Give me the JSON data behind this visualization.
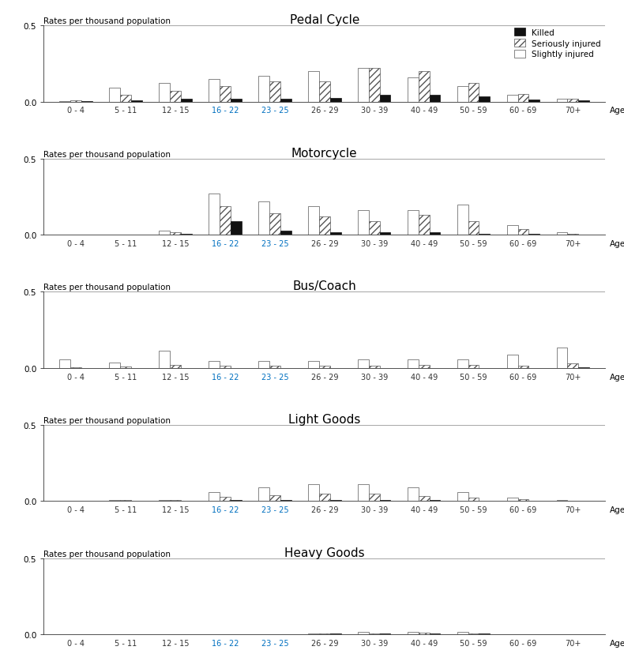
{
  "age_groups": [
    "0 - 4",
    "5 - 11",
    "12 - 15",
    "16 - 22",
    "23 - 25",
    "26 - 29",
    "30 - 39",
    "40 - 49",
    "50 - 59",
    "60 - 69",
    "70+"
  ],
  "age_colors": [
    "#333333",
    "#333333",
    "#333333",
    "#0070c0",
    "#0070c0",
    "#333333",
    "#333333",
    "#333333",
    "#333333",
    "#333333",
    "#333333"
  ],
  "charts": [
    {
      "title": "Pedal Cycle",
      "killed": [
        0.003,
        0.008,
        0.018,
        0.018,
        0.02,
        0.025,
        0.045,
        0.045,
        0.035,
        0.012,
        0.008
      ],
      "seriously_injured": [
        0.008,
        0.045,
        0.07,
        0.1,
        0.13,
        0.13,
        0.22,
        0.2,
        0.12,
        0.05,
        0.018
      ],
      "slightly_injured": [
        0.003,
        0.09,
        0.12,
        0.15,
        0.17,
        0.2,
        0.22,
        0.16,
        0.1,
        0.045,
        0.018
      ]
    },
    {
      "title": "Motorcycle",
      "killed": [
        0.0,
        0.0,
        0.004,
        0.09,
        0.025,
        0.018,
        0.018,
        0.014,
        0.008,
        0.004,
        0.003
      ],
      "seriously_injured": [
        0.0,
        0.0,
        0.018,
        0.19,
        0.14,
        0.12,
        0.09,
        0.13,
        0.09,
        0.035,
        0.008
      ],
      "slightly_injured": [
        0.0,
        0.0,
        0.025,
        0.27,
        0.22,
        0.19,
        0.16,
        0.16,
        0.2,
        0.065,
        0.018
      ]
    },
    {
      "title": "Bus/Coach",
      "killed": [
        0.0,
        0.0,
        0.0,
        0.0,
        0.0,
        0.0,
        0.0,
        0.0,
        0.0,
        0.0,
        0.004
      ],
      "seriously_injured": [
        0.004,
        0.012,
        0.022,
        0.015,
        0.015,
        0.015,
        0.015,
        0.022,
        0.018,
        0.015,
        0.03
      ],
      "slightly_injured": [
        0.055,
        0.035,
        0.115,
        0.045,
        0.045,
        0.045,
        0.055,
        0.055,
        0.055,
        0.085,
        0.135
      ]
    },
    {
      "title": "Light Goods",
      "killed": [
        0.0,
        0.003,
        0.003,
        0.008,
        0.008,
        0.01,
        0.01,
        0.008,
        0.004,
        0.003,
        0.0
      ],
      "seriously_injured": [
        0.003,
        0.008,
        0.008,
        0.03,
        0.04,
        0.05,
        0.05,
        0.035,
        0.025,
        0.012,
        0.004
      ],
      "slightly_injured": [
        0.003,
        0.008,
        0.008,
        0.06,
        0.09,
        0.11,
        0.11,
        0.09,
        0.06,
        0.025,
        0.008
      ]
    },
    {
      "title": "Heavy Goods",
      "killed": [
        0.0,
        0.0,
        0.0,
        0.0,
        0.003,
        0.004,
        0.004,
        0.004,
        0.004,
        0.0,
        0.0
      ],
      "seriously_injured": [
        0.0,
        0.0,
        0.0,
        0.0,
        0.003,
        0.007,
        0.008,
        0.01,
        0.008,
        0.003,
        0.003
      ],
      "slightly_injured": [
        0.0,
        0.0,
        0.0,
        0.0,
        0.003,
        0.008,
        0.015,
        0.018,
        0.015,
        0.003,
        0.003
      ]
    }
  ],
  "ylim": [
    0,
    0.5
  ],
  "bar_width": 0.22,
  "title_fontsize": 11,
  "tick_fontsize": 7.5,
  "ylabel_fontsize": 7.5,
  "legend_fontsize": 7.5,
  "background_color": "#ffffff",
  "axis_label_color": "#333333",
  "blue_color": "#0070c0",
  "hline_color": "#aaaaaa"
}
